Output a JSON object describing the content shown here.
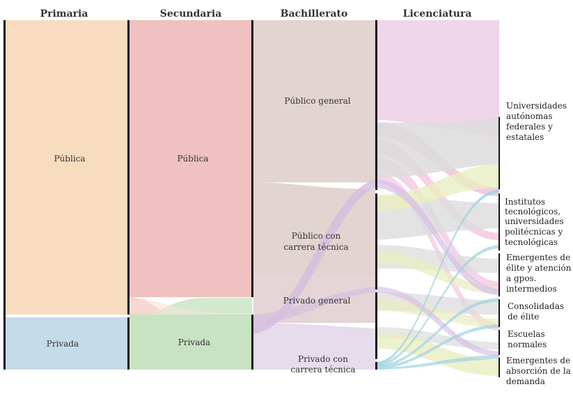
{
  "stages": {
    "primaria": "Primaria",
    "secundaria": "Secundaria",
    "bachillerato": "Bachillerato",
    "licenciatura": "Licenciatura"
  },
  "nodes": {
    "primaria_publica": "Pública",
    "primaria_privada": "Privada",
    "secundaria_publica": "Pública",
    "secundaria_privada": "Privada",
    "bach_publico_general": "Público general",
    "bach_publico_tecnica_1": "Público con",
    "bach_publico_tecnica_2": "carrera técnica",
    "bach_privado_general": "Privado general",
    "bach_privado_tecnica_1": "Privado con",
    "bach_privado_tecnica_2": "carrera técnica"
  },
  "destinations": {
    "autonomas": [
      "Universidades",
      "autónomas",
      "federales y",
      "estatales"
    ],
    "institutos": [
      "Institutos",
      "tecnológicos,",
      "universidades",
      "politécnicas y",
      "tecnológicas"
    ],
    "emergentes_elite": [
      "Emergentes de",
      "élite y atención",
      "a gpos.",
      "intermedios"
    ],
    "consolidadas": [
      "Consolidadas",
      "de élite"
    ],
    "normales": [
      "Escuelas",
      "normales"
    ],
    "emergentes_absorcion": [
      "Emergentes de",
      "absorción de la",
      "demanda"
    ]
  },
  "colors": {
    "primaria_publica": "#f8dcc0",
    "primaria_privada": "#c4dbea",
    "secundaria_publica": "#f1c0c0",
    "secundaria_privada": "#c7e3c2",
    "bach_publico": "#e2d4d0",
    "bach_privado": "#e6dcec",
    "lic_autonomas": "#f0d6ea",
    "lic_gray": "#dcdcdc",
    "lic_yellow": "#eaedc0",
    "lic_pink": "#ecb8d8",
    "lic_purple": "#d8bde6",
    "lic_blue": "#bcdfe8",
    "bar": "#111111"
  }
}
